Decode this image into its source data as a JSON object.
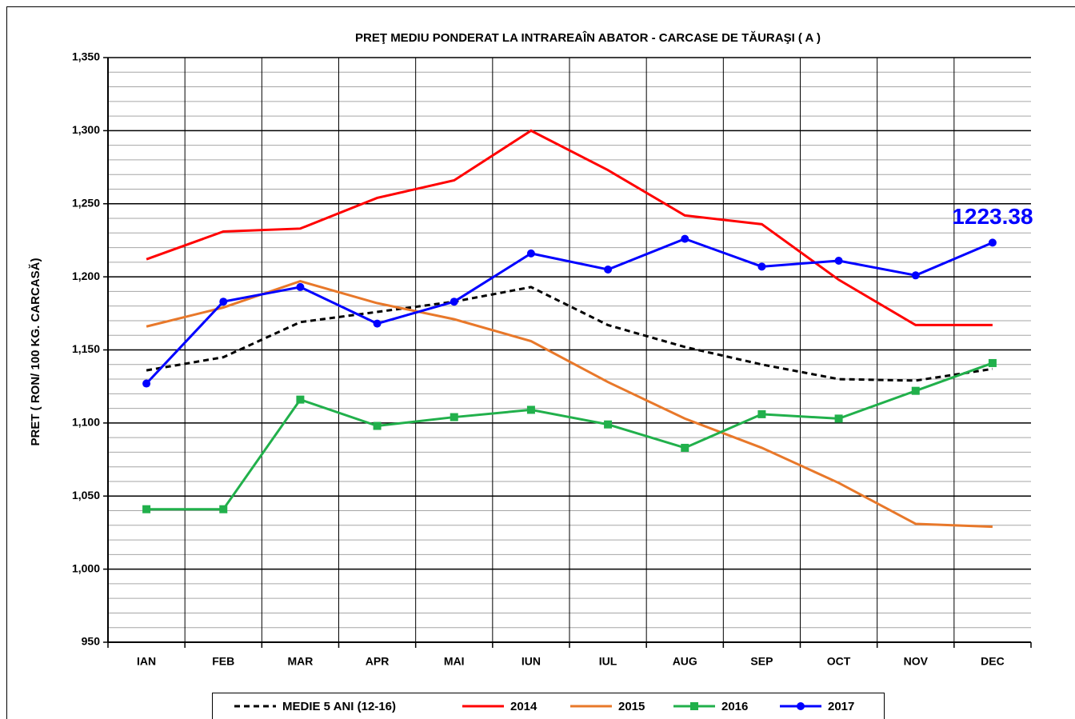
{
  "chart_data": {
    "type": "line",
    "title": "PREŢ MEDIU PONDERAT LA INTRAREAÎN ABATOR - CARCASE DE TĂURAŞI ( A )",
    "y_label": "PRET ( RON/ 100 KG. CARCASĂ)",
    "categories": [
      "IAN",
      "FEB",
      "MAR",
      "APR",
      "MAI",
      "IUN",
      "IUL",
      "AUG",
      "SEP",
      "OCT",
      "NOV",
      "DEC"
    ],
    "ylim": [
      950,
      1350
    ],
    "yticks": [
      {
        "value": 950,
        "label": "950"
      },
      {
        "value": 1000,
        "label": "1,000"
      },
      {
        "value": 1050,
        "label": "1,050"
      },
      {
        "value": 1100,
        "label": "1,100"
      },
      {
        "value": 1150,
        "label": "1,150"
      },
      {
        "value": 1200,
        "label": "1,200"
      },
      {
        "value": 1250,
        "label": "1,250"
      },
      {
        "value": 1300,
        "label": "1,300"
      },
      {
        "value": 1350,
        "label": "1,350"
      }
    ],
    "minor_yticks": [
      960,
      970,
      980,
      990,
      1010,
      1020,
      1030,
      1040,
      1060,
      1070,
      1080,
      1090,
      1110,
      1120,
      1130,
      1140,
      1160,
      1170,
      1180,
      1190,
      1210,
      1220,
      1230,
      1240,
      1260,
      1270,
      1280,
      1290,
      1310,
      1320,
      1330,
      1340
    ],
    "grid": true,
    "legend": "bottom",
    "series": [
      {
        "name": "MEDIE 5 ANI (12-16)",
        "color": "#000000",
        "dashed": true,
        "marker": null,
        "values": [
          1136,
          1145,
          1169,
          1176,
          1183,
          1193,
          1167,
          1152,
          1140,
          1130,
          1129,
          1137
        ]
      },
      {
        "name": "2014",
        "color": "#ff0000",
        "dashed": false,
        "marker": null,
        "values": [
          1212,
          1231,
          1233,
          1254,
          1266,
          1300,
          1273,
          1242,
          1236,
          1198,
          1167,
          1167
        ]
      },
      {
        "name": "2015",
        "color": "#e8782a",
        "dashed": false,
        "marker": null,
        "values": [
          1166,
          1179,
          1197,
          1182,
          1171,
          1156,
          1128,
          1103,
          1083,
          1059,
          1031,
          1029
        ]
      },
      {
        "name": "2016",
        "color": "#21b04b",
        "dashed": false,
        "marker": "square",
        "values": [
          1041,
          1041,
          1116,
          1098,
          1104,
          1109,
          1099,
          1083,
          1106,
          1103,
          1122,
          1141
        ]
      },
      {
        "name": "2017",
        "color": "#0000ff",
        "dashed": false,
        "marker": "circle",
        "values": [
          1127,
          1183,
          1193,
          1168,
          1183,
          1216,
          1205,
          1226,
          1207,
          1211,
          1201,
          1223.38
        ],
        "value_labels": [
          null,
          null,
          null,
          null,
          null,
          null,
          null,
          null,
          null,
          null,
          null,
          "1223.38"
        ]
      }
    ]
  }
}
